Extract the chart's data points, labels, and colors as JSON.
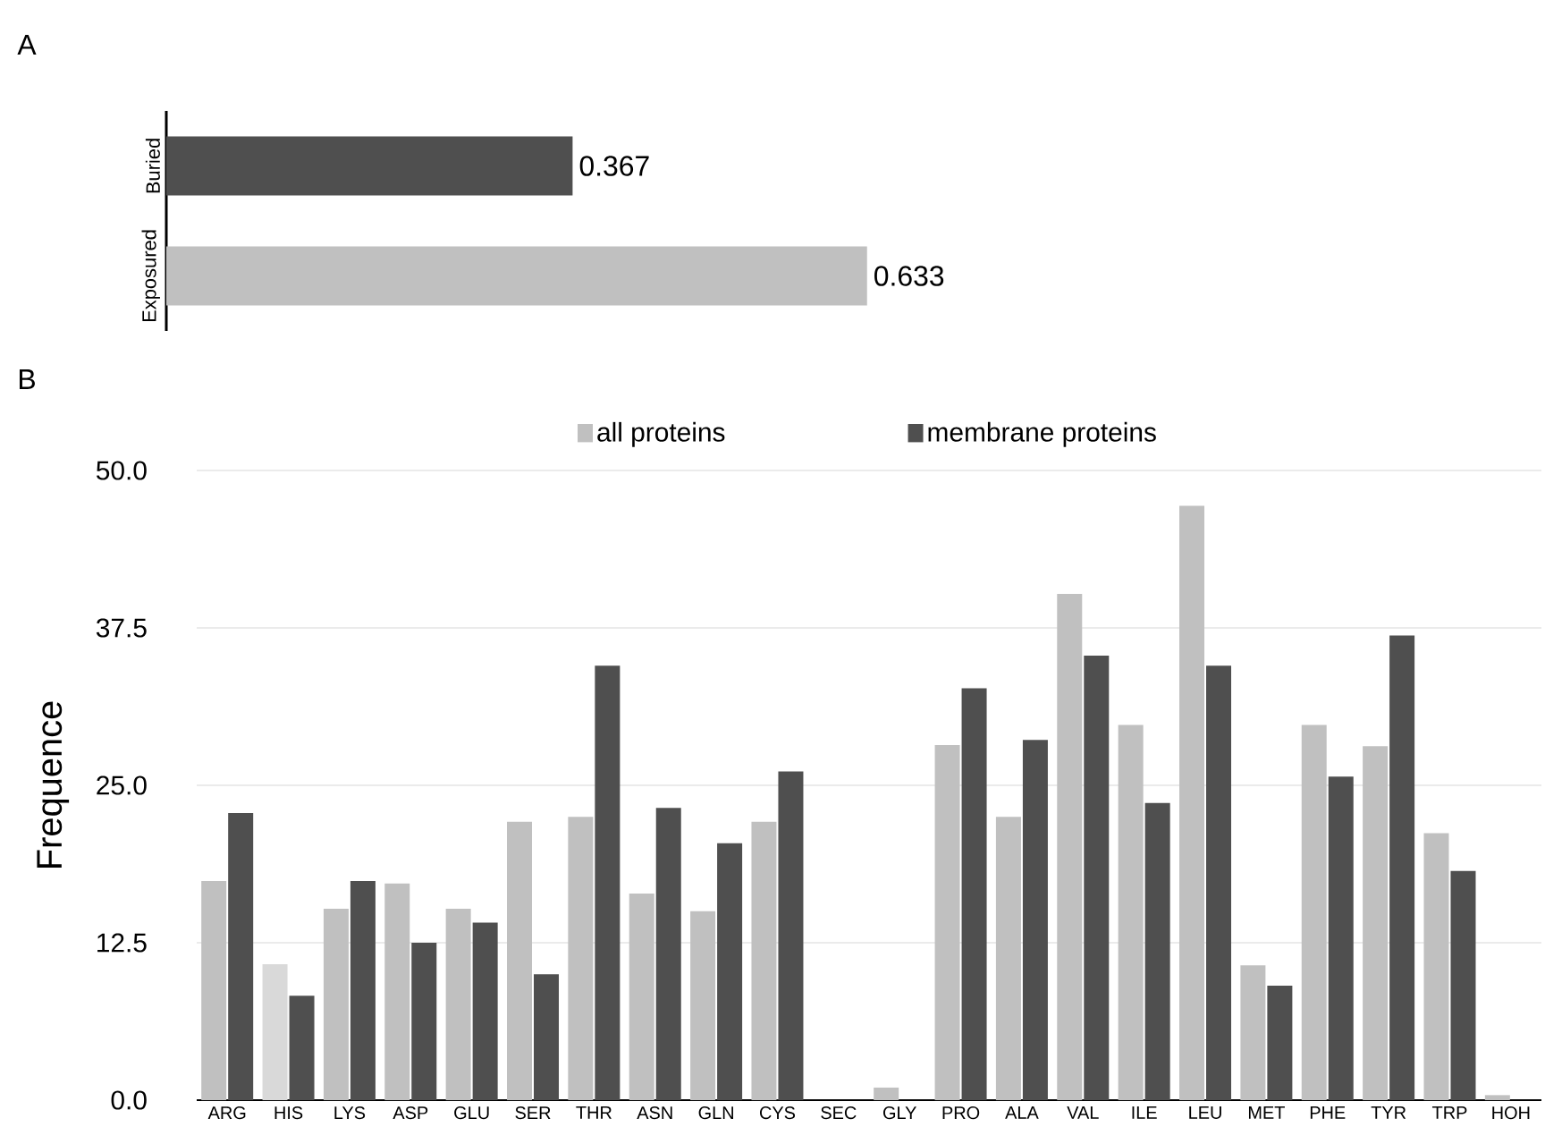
{
  "chart_data": [
    {
      "type": "bar",
      "title": "A",
      "orientation": "horizontal",
      "categories": [
        "Buried",
        "Exposured"
      ],
      "values": [
        0.367,
        0.633
      ],
      "colors": [
        "#4f4f4f",
        "#c0c0c0"
      ],
      "data_labels": true,
      "tick_labels": "y"
    },
    {
      "type": "bar",
      "title": "B",
      "ylabel": "Frequence",
      "categories": [
        "ARG",
        "HIS",
        "LYS",
        "ASP",
        "GLU",
        "SER",
        "THR",
        "ASN",
        "GLN",
        "CYS",
        "SEC",
        "GLY",
        "PRO",
        "ALA",
        "VAL",
        "ILE",
        "LEU",
        "MET",
        "PHE",
        "TYR",
        "TRP",
        "HOH"
      ],
      "series": [
        {
          "name": "all proteins",
          "color": "#c0c0c0",
          "colors": [
            "#c0c0c0",
            "#d9d9d9",
            "#c0c0c0",
            "#c0c0c0",
            "#c0c0c0",
            "#c0c0c0",
            "#c0c0c0",
            "#c0c0c0",
            "#c0c0c0",
            "#c0c0c0",
            "#c0c0c0",
            "#c0c0c0",
            "#c0c0c0",
            "#c0c0c0",
            "#c0c0c0",
            "#c0c0c0",
            "#c0c0c0",
            "#c0c0c0",
            "#c0c0c0",
            "#c0c0c0",
            "#c0c0c0",
            "#c0c0c0"
          ],
          "values": [
            17.4,
            10.8,
            15.2,
            17.2,
            15.2,
            22.1,
            22.5,
            16.4,
            15.0,
            22.1,
            0,
            1.0,
            28.2,
            22.5,
            40.2,
            29.8,
            47.2,
            10.7,
            29.8,
            28.1,
            21.2,
            0.4
          ]
        },
        {
          "name": "membrane proteins",
          "color": "#4f4f4f",
          "values": [
            22.8,
            8.3,
            17.4,
            12.5,
            14.1,
            10.0,
            34.5,
            23.2,
            20.4,
            26.1,
            0,
            0,
            32.7,
            28.6,
            35.3,
            23.6,
            34.5,
            9.1,
            25.7,
            36.9,
            18.2,
            0
          ]
        }
      ],
      "ylim": [
        0,
        50
      ],
      "yticks": [
        {
          "value": 0,
          "label": "0.0"
        },
        {
          "value": 12.5,
          "label": "12.5"
        },
        {
          "value": 25,
          "label": "25.0"
        },
        {
          "value": 37.5,
          "label": "37.5"
        },
        {
          "value": 50,
          "label": "50.0"
        }
      ],
      "grid": "y",
      "legend": "top"
    }
  ]
}
